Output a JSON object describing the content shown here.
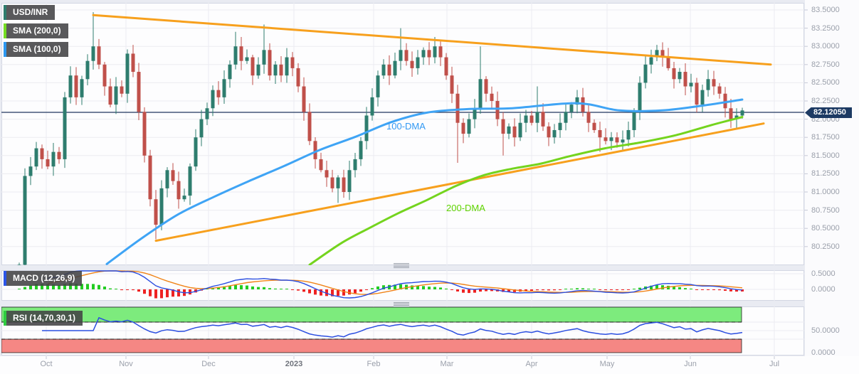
{
  "legend": {
    "symbol": "USD/INR",
    "sma200": "SMA (200,0)",
    "sma100": "SMA (100,0)",
    "macd": "MACD (12,26,9)",
    "rsi": "RSI (14,70,30,1)"
  },
  "overlay_labels": {
    "dma100": "100-DMA",
    "dma200": "200-DMA"
  },
  "price_tag": "82.12050",
  "colors": {
    "candle_up": "#2e7d6e",
    "candle_down": "#c0504a",
    "trendline": "#f7a01d",
    "sma100": "#3fa4f5",
    "sma200": "#74d41e",
    "last_price_line": "#21375e",
    "price_tag_bg": "#1d3a63",
    "macd_line": "#2b4ee0",
    "macd_signal": "#f08418",
    "hist_up": "#22cc22",
    "hist_down": "#ee2222",
    "rsi_line": "#2b4ee0",
    "rsi_band_high": "#7deb7d",
    "rsi_band_low": "#f58784"
  },
  "chart_data": {
    "type": "candlestick",
    "title": "USD/INR daily chart with SMA(100), SMA(200), symmetrical-triangle trendlines, MACD and RSI",
    "last_price": 82.1205,
    "price_axis_labels": [
      "83.5000",
      "83.2500",
      "83.0000",
      "82.7500",
      "82.5000",
      "82.2500",
      "82.0000",
      "81.7500",
      "81.5000",
      "81.2500",
      "81.0000",
      "80.7500",
      "80.5000",
      "80.2500"
    ],
    "month_labels": [
      "Oct",
      "Nov",
      "Dec",
      "2023",
      "Feb",
      "Mar",
      "Apr",
      "May",
      "Jun",
      "Jul"
    ],
    "macd_axis_labels": [
      "0.5000",
      "0.0000"
    ],
    "rsi_axis_labels": [
      "50.0000",
      "0.0000"
    ],
    "rsi_levels": {
      "overbought": 70,
      "oversold": 30
    },
    "first_open": 79.9,
    "closes": [
      80.0,
      81.22,
      81.35,
      81.6,
      81.45,
      81.35,
      81.55,
      81.45,
      82.3,
      82.6,
      82.3,
      82.55,
      82.8,
      83.0,
      82.75,
      82.45,
      82.2,
      82.45,
      82.35,
      82.9,
      82.65,
      82.1,
      81.5,
      80.9,
      80.55,
      81.05,
      81.3,
      81.15,
      80.9,
      80.95,
      81.35,
      81.75,
      82.0,
      82.15,
      82.4,
      82.3,
      82.55,
      82.75,
      83.0,
      82.8,
      82.85,
      82.6,
      82.75,
      82.95,
      82.6,
      82.75,
      82.6,
      82.85,
      82.7,
      82.45,
      82.1,
      81.7,
      81.45,
      81.3,
      81.2,
      81.05,
      81.2,
      81.0,
      81.3,
      81.45,
      81.7,
      82.05,
      82.3,
      82.6,
      82.75,
      82.6,
      82.8,
      82.95,
      82.8,
      82.7,
      82.85,
      82.95,
      82.85,
      83.0,
      82.85,
      82.6,
      82.35,
      81.95,
      81.8,
      82.0,
      82.15,
      82.55,
      82.35,
      82.25,
      82.0,
      81.8,
      81.9,
      81.75,
      81.95,
      82.05,
      81.95,
      82.1,
      81.9,
      81.75,
      81.85,
      81.95,
      82.1,
      82.2,
      82.3,
      82.1,
      81.95,
      81.85,
      81.75,
      81.7,
      81.75,
      81.68,
      81.72,
      81.85,
      82.1,
      82.5,
      82.75,
      82.85,
      82.95,
      82.85,
      82.7,
      82.55,
      82.65,
      82.45,
      82.5,
      82.2,
      82.4,
      82.55,
      82.45,
      82.35,
      82.15,
      82.0,
      82.05,
      82.12
    ],
    "wick_overrides": [
      {
        "i": 13,
        "hi": 83.47
      },
      {
        "i": 24,
        "lo": 80.35
      },
      {
        "i": 38,
        "hi": 83.2
      },
      {
        "i": 43,
        "hi": 83.3
      },
      {
        "i": 56,
        "lo": 80.85
      },
      {
        "i": 67,
        "hi": 83.25
      },
      {
        "i": 77,
        "lo": 81.4
      },
      {
        "i": 81,
        "hi": 83.0
      },
      {
        "i": 85,
        "lo": 81.5
      },
      {
        "i": 91,
        "hi": 82.45
      },
      {
        "i": 102,
        "lo": 81.55
      },
      {
        "i": 112,
        "hi": 83.02
      },
      {
        "i": 125,
        "lo": 81.88
      }
    ],
    "trendlines": {
      "upper": [
        [
          131,
          83.43
        ],
        [
          1083,
          82.75
        ]
      ],
      "lower": [
        [
          219,
          80.33
        ],
        [
          1073,
          81.94
        ]
      ]
    },
    "sma100": [
      [
        150,
        80.01
      ],
      [
        200,
        80.37
      ],
      [
        250,
        80.69
      ],
      [
        300,
        80.93
      ],
      [
        350,
        81.15
      ],
      [
        400,
        81.36
      ],
      [
        450,
        81.58
      ],
      [
        500,
        81.76
      ],
      [
        550,
        81.96
      ],
      [
        600,
        82.09
      ],
      [
        660,
        82.14
      ],
      [
        720,
        82.15
      ],
      [
        810,
        82.22
      ],
      [
        870,
        82.12
      ],
      [
        930,
        82.12
      ],
      [
        990,
        82.19
      ],
      [
        1043,
        82.27
      ]
    ],
    "sma200": [
      [
        435,
        80.0
      ],
      [
        480,
        80.3
      ],
      [
        520,
        80.51
      ],
      [
        560,
        80.71
      ],
      [
        600,
        80.89
      ],
      [
        640,
        81.08
      ],
      [
        680,
        81.23
      ],
      [
        720,
        81.32
      ],
      [
        760,
        81.39
      ],
      [
        800,
        81.49
      ],
      [
        850,
        81.6
      ],
      [
        900,
        81.68
      ],
      [
        950,
        81.78
      ],
      [
        1000,
        81.92
      ],
      [
        1043,
        82.03
      ]
    ]
  }
}
